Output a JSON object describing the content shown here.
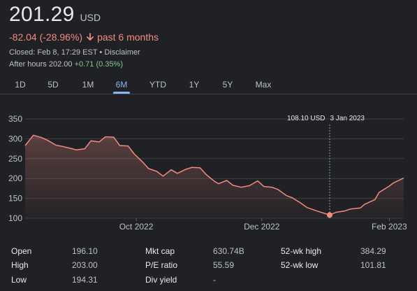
{
  "header": {
    "price": "201.29",
    "currency": "USD",
    "change": "-82.04 (-28.96%)",
    "period": "past 6 months",
    "closed_text": "Closed: Feb 8, 17:29 EST",
    "separator": " • ",
    "disclaimer": "Disclaimer",
    "after_hours_label": "After hours",
    "after_hours_price": "202.00",
    "after_hours_change": "+0.71 (0.35%)",
    "colors": {
      "negative": "#f28b82",
      "positive": "#81c995",
      "accent": "#8ab4f8"
    }
  },
  "tabs": [
    "1D",
    "5D",
    "1M",
    "6M",
    "YTD",
    "1Y",
    "5Y",
    "Max"
  ],
  "active_tab": "6M",
  "tooltip": {
    "price": "108.10 USD",
    "date": "3 Jan 2023"
  },
  "chart_data": {
    "type": "area",
    "title": "",
    "xlabel": "",
    "ylabel": "",
    "ylim": [
      100,
      350
    ],
    "yticks": [
      "350",
      "300",
      "250",
      "200",
      "150",
      "100"
    ],
    "xticks": [
      {
        "label": "Oct 2022",
        "date": "2022-10-01"
      },
      {
        "label": "Dec 2022",
        "date": "2022-12-01"
      },
      {
        "label": "Feb 2023",
        "date": "2023-02-01"
      }
    ],
    "x_range": [
      "2022-08-08",
      "2023-02-08"
    ],
    "grid": true,
    "line_color": "#f28b82",
    "highlight": {
      "date": "2023-01-03",
      "value": 108.1
    },
    "x": [
      "2022-08-08",
      "2022-08-10",
      "2022-08-12",
      "2022-08-16",
      "2022-08-19",
      "2022-08-23",
      "2022-08-26",
      "2022-08-30",
      "2022-09-02",
      "2022-09-06",
      "2022-09-09",
      "2022-09-13",
      "2022-09-16",
      "2022-09-20",
      "2022-09-23",
      "2022-09-27",
      "2022-09-30",
      "2022-10-04",
      "2022-10-07",
      "2022-10-11",
      "2022-10-14",
      "2022-10-18",
      "2022-10-21",
      "2022-10-25",
      "2022-10-28",
      "2022-11-01",
      "2022-11-04",
      "2022-11-08",
      "2022-11-10",
      "2022-11-14",
      "2022-11-17",
      "2022-11-21",
      "2022-11-25",
      "2022-11-29",
      "2022-12-02",
      "2022-12-06",
      "2022-12-09",
      "2022-12-13",
      "2022-12-16",
      "2022-12-20",
      "2022-12-23",
      "2022-12-28",
      "2023-01-03",
      "2023-01-06",
      "2023-01-10",
      "2023-01-13",
      "2023-01-18",
      "2023-01-20",
      "2023-01-25",
      "2023-01-27",
      "2023-02-01",
      "2023-02-03",
      "2023-02-08"
    ],
    "values": [
      283,
      296,
      309,
      303,
      296,
      284,
      281,
      276,
      272,
      275,
      295,
      292,
      305,
      304,
      283,
      282,
      262,
      242,
      225,
      218,
      206,
      222,
      213,
      223,
      228,
      227,
      210,
      193,
      187,
      195,
      183,
      178,
      182,
      194,
      180,
      178,
      172,
      157,
      151,
      138,
      127,
      118,
      108.1,
      115,
      118,
      123,
      126,
      135,
      147,
      165,
      181,
      189,
      201.29
    ]
  },
  "stats": [
    {
      "label": "Open",
      "value": "196.10"
    },
    {
      "label": "High",
      "value": "203.00"
    },
    {
      "label": "Low",
      "value": "194.31"
    },
    {
      "label": "Mkt cap",
      "value": "630.74B"
    },
    {
      "label": "P/E ratio",
      "value": "55.59"
    },
    {
      "label": "Div yield",
      "value": "-"
    },
    {
      "label": "52-wk high",
      "value": "384.29"
    },
    {
      "label": "52-wk low",
      "value": "101.81"
    }
  ]
}
